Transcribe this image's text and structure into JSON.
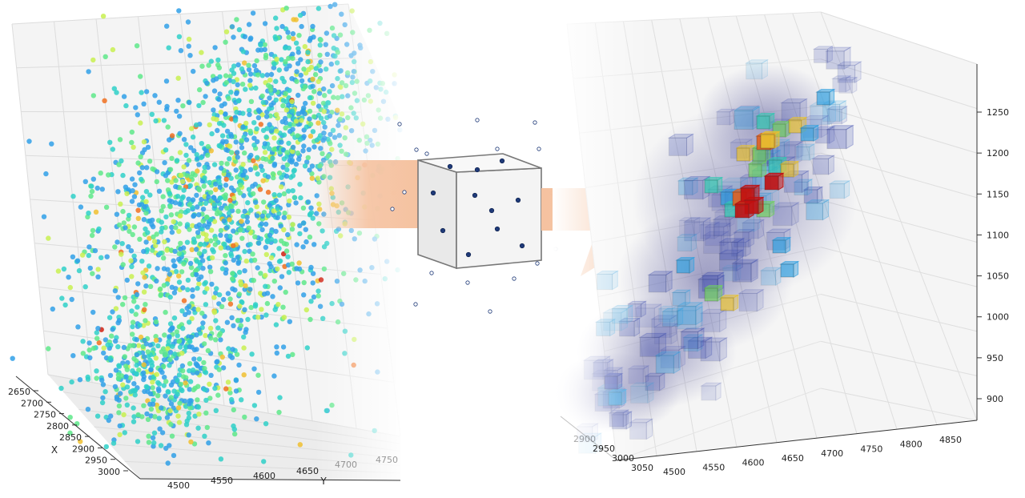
{
  "chart_data": [
    {
      "type": "scatter",
      "dims": 3,
      "xlabel": "X",
      "ylabel": "Y",
      "x_ticks": [
        "2650",
        "2700",
        "2750",
        "2800",
        "2850",
        "2900",
        "2950",
        "3000"
      ],
      "y_ticks": [
        "4500",
        "4550",
        "4600",
        "4650",
        "4700",
        "4750"
      ],
      "xlim": [
        2650,
        3000
      ],
      "ylim": [
        4500,
        4750
      ],
      "colormap": [
        "#30a0e8",
        "#2fd0c8",
        "#5ee88a",
        "#c8f050",
        "#f0c030",
        "#f07020",
        "#d02010"
      ],
      "grid": true
    },
    {
      "type": "heatmap",
      "dims": 3,
      "x_ticks": [
        "2900",
        "2950",
        "3000",
        "3050"
      ],
      "y_ticks": [
        "4500",
        "4550",
        "4600",
        "4650",
        "4700",
        "4750",
        "4800",
        "4850"
      ],
      "z_ticks": [
        "900",
        "950",
        "1000",
        "1050",
        "1100",
        "1150",
        "1200",
        "1250"
      ],
      "xlim": [
        2900,
        3050
      ],
      "ylim": [
        4500,
        4850
      ],
      "zlim": [
        900,
        1250
      ],
      "colormap": [
        "#4050b0",
        "#30a0e0",
        "#30c8b0",
        "#70d060",
        "#e8c030",
        "#e06020",
        "#c01010"
      ],
      "grid": true
    }
  ],
  "diagram": {
    "arrow_color": "#f5c2a0",
    "cube_fill": "#f2f2f2",
    "cube_stroke": "#777777",
    "point_color": "#1f3a78"
  }
}
